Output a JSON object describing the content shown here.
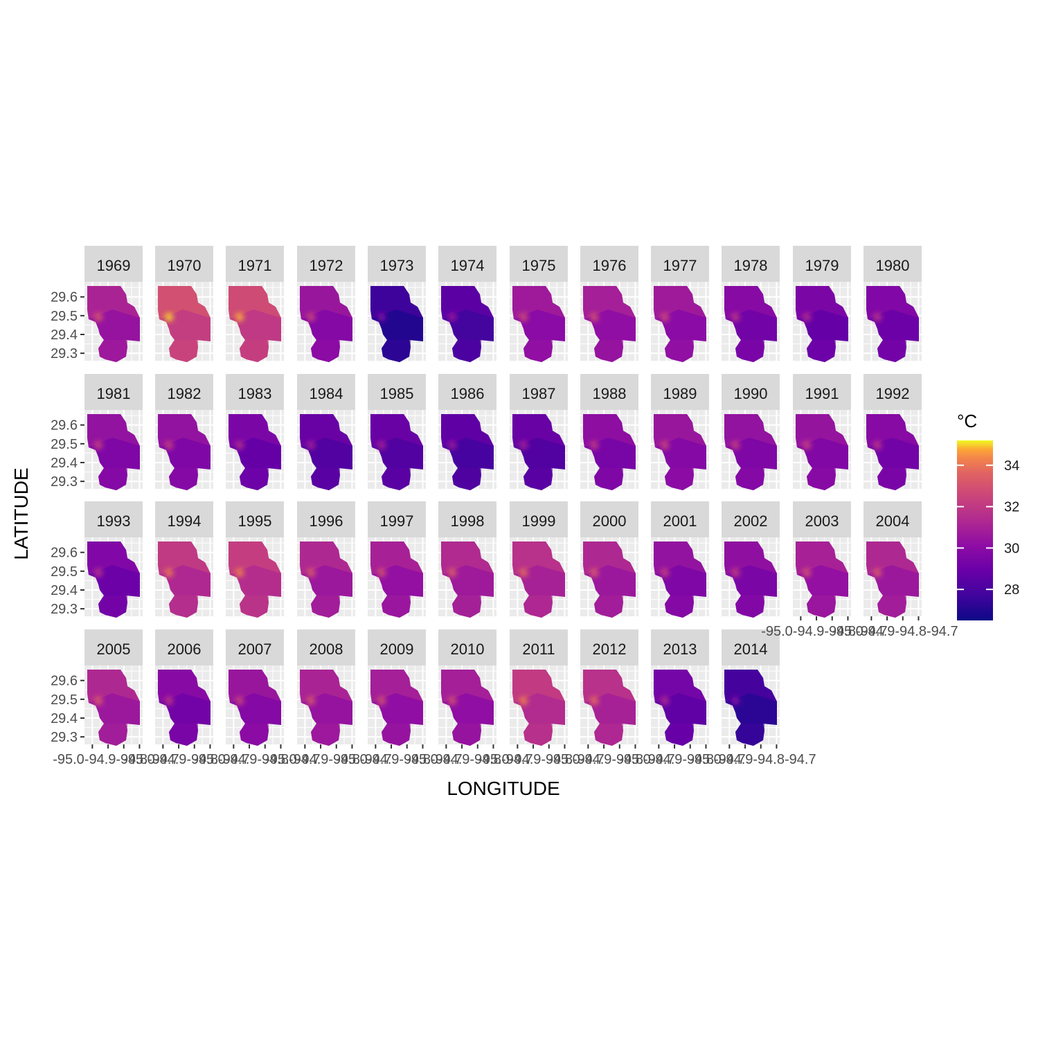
{
  "chart_data": {
    "type": "heatmap",
    "facet_by": "year",
    "facets": [
      "1969",
      "1970",
      "1971",
      "1972",
      "1973",
      "1974",
      "1975",
      "1976",
      "1977",
      "1978",
      "1979",
      "1980",
      "1981",
      "1982",
      "1983",
      "1984",
      "1985",
      "1986",
      "1987",
      "1988",
      "1989",
      "1990",
      "1991",
      "1992",
      "1993",
      "1994",
      "1995",
      "1996",
      "1997",
      "1998",
      "1999",
      "2000",
      "2001",
      "2002",
      "2003",
      "2004",
      "2005",
      "2006",
      "2007",
      "2008",
      "2009",
      "2010",
      "2011",
      "2012",
      "2013",
      "2014"
    ],
    "facet_mean_temp_c": [
      30.4,
      32.2,
      32.0,
      29.8,
      27.0,
      27.8,
      30.0,
      30.2,
      30.0,
      29.2,
      28.8,
      29.0,
      29.6,
      29.6,
      28.8,
      28.2,
      28.2,
      27.9,
      28.2,
      29.4,
      29.8,
      29.6,
      29.7,
      29.2,
      29.0,
      31.3,
      31.5,
      30.6,
      30.3,
      30.7,
      31.0,
      30.6,
      29.6,
      29.5,
      30.3,
      30.6,
      30.6,
      29.2,
      29.8,
      30.4,
      30.2,
      30.2,
      31.4,
      31.0,
      28.6,
      27.2
    ],
    "xlabel": "LONGITUDE",
    "ylabel": "LATITUDE",
    "y_ticks": [
      "29.6",
      "29.5",
      "29.4",
      "29.3"
    ],
    "x_tick_label_row_4": "-95.0-94.9-94.8-94.7",
    "x_tick_label_row_3": "-95.0-94.9-94.8-94.7",
    "xlim": [
      -95.05,
      -94.68
    ],
    "ylim": [
      29.26,
      29.68
    ],
    "legend": {
      "title": "°C",
      "ticks": [
        "34",
        "32",
        "30",
        "28"
      ],
      "tick_values": [
        34,
        32,
        30,
        28
      ],
      "range": [
        26.5,
        35.2
      ],
      "colormap": "plasma",
      "position": "right"
    },
    "grid": true,
    "panel_background": "#ebebeb",
    "strip_background": "#d9d9d9"
  }
}
